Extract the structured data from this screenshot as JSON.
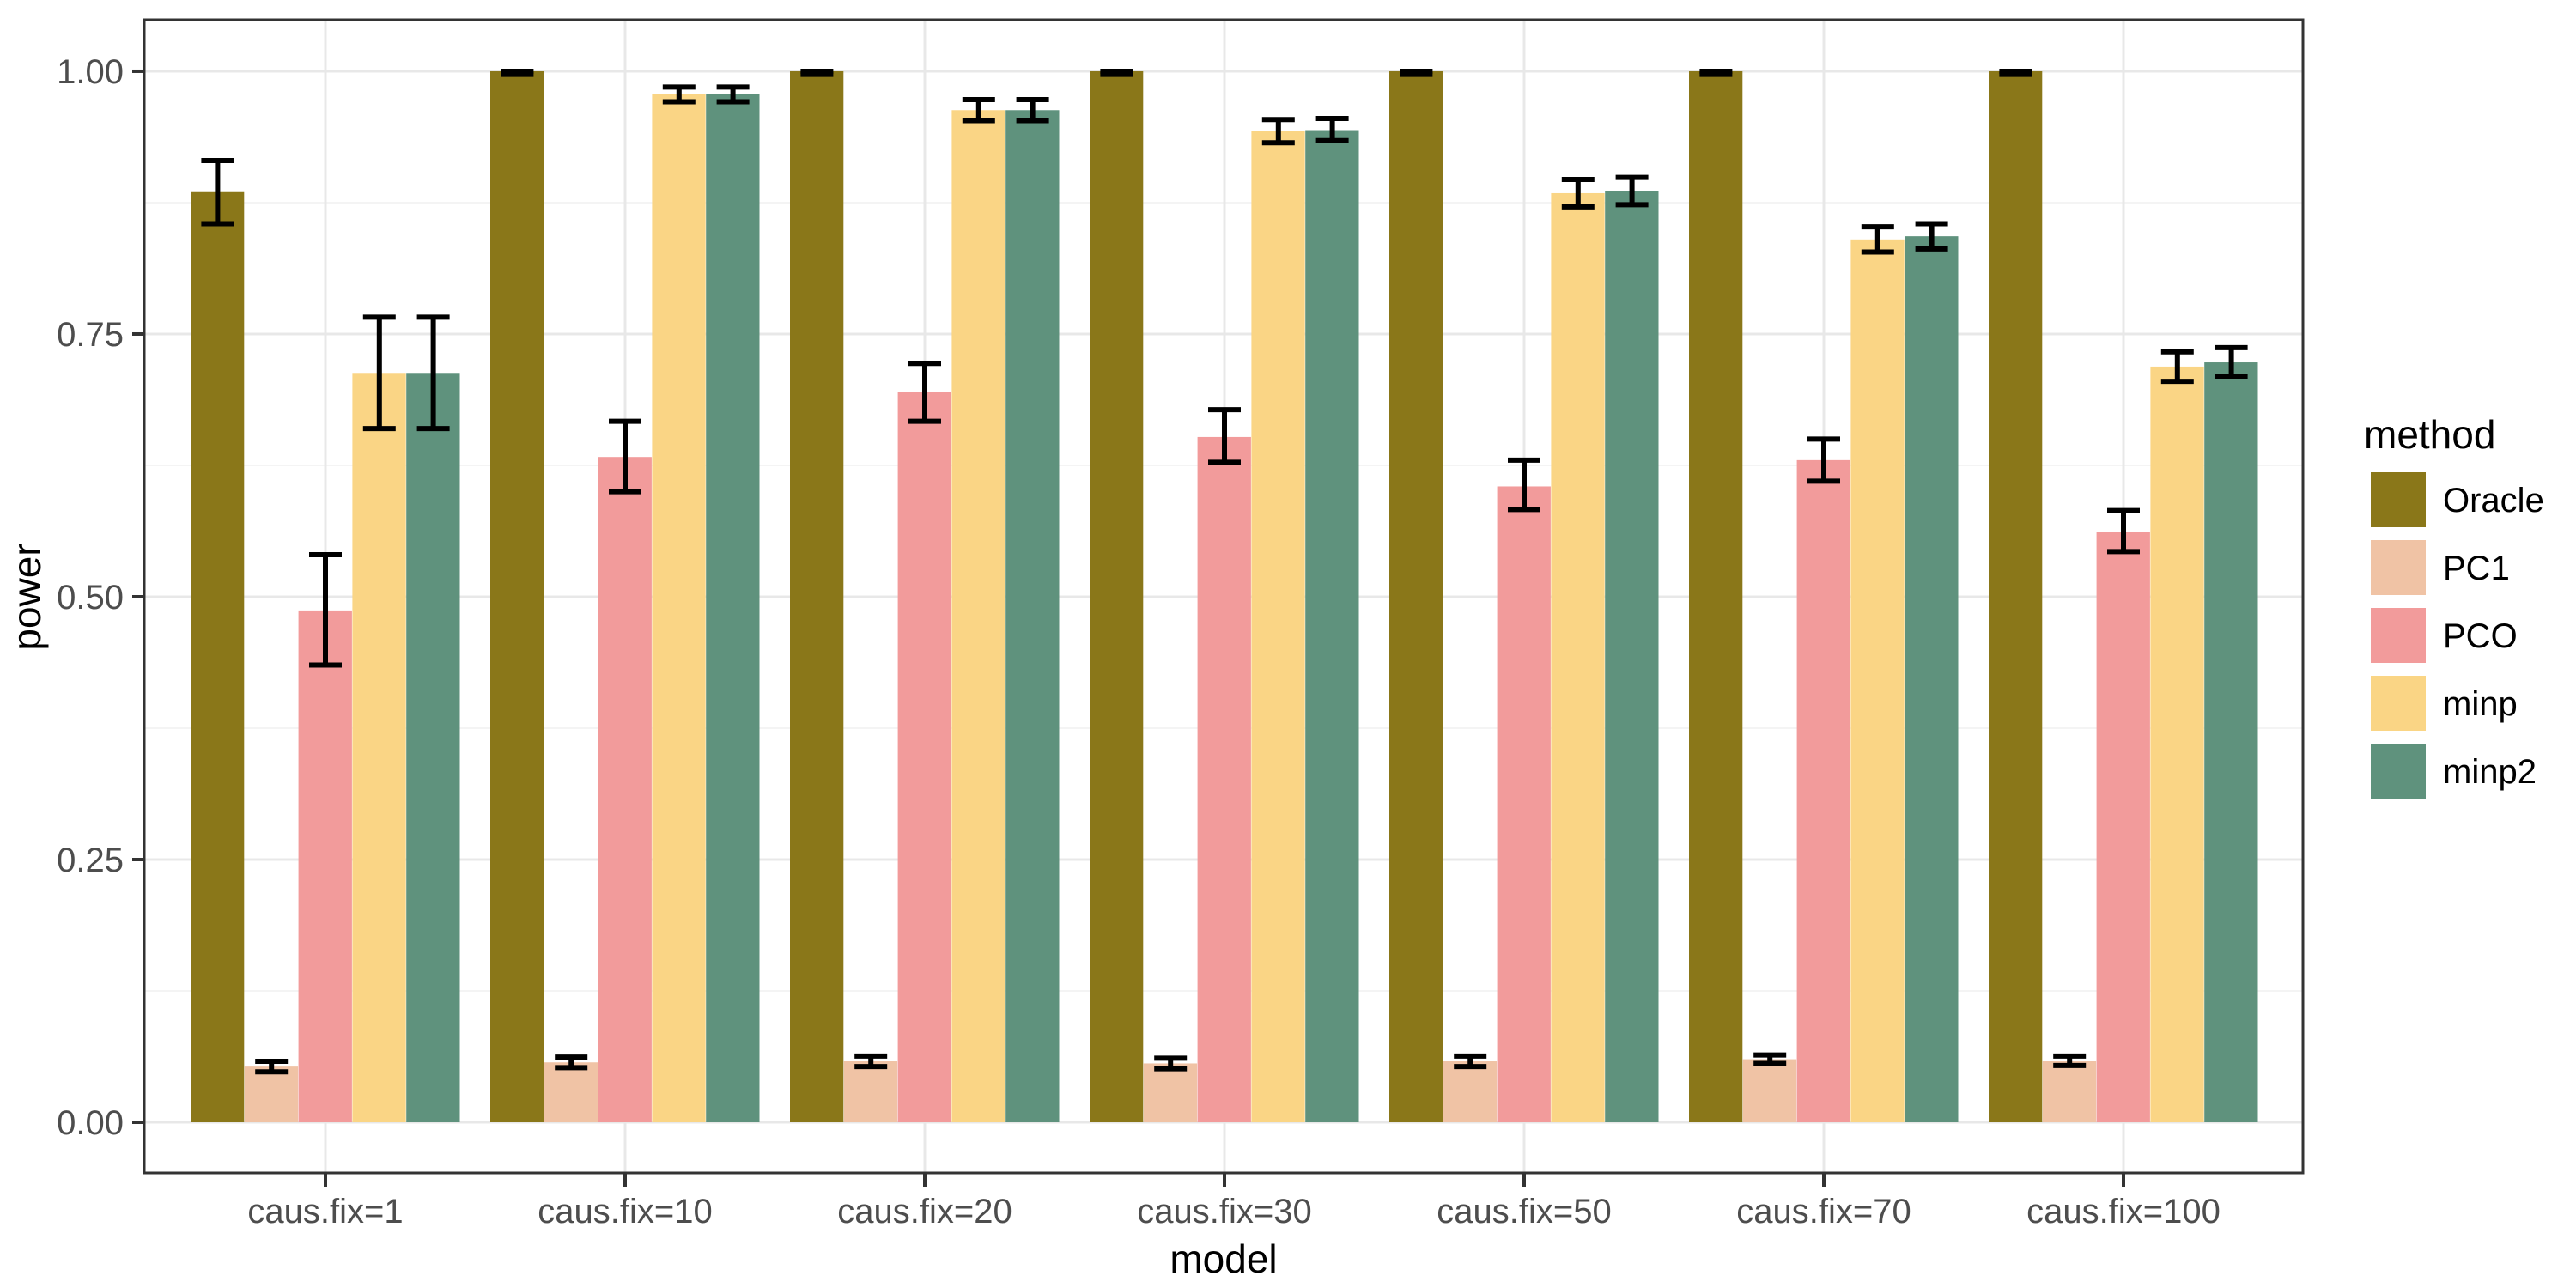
{
  "figure": {
    "background": "#FFFFFF",
    "panel_border_color": "#333333",
    "grid_major_color": "#E8E8E8",
    "grid_minor_color": "#F4F4F4",
    "axis_text_color": "#4D4D4D",
    "axis_title_color": "#000000",
    "errorbar_color": "#000000"
  },
  "chart_data": {
    "type": "bar",
    "title": "",
    "xlabel": "model",
    "ylabel": "power",
    "legend_title": "method",
    "legend_position": "right",
    "grid": true,
    "ylim": [
      -0.0482,
      1.049
    ],
    "y_ticks": [
      {
        "value": 0.0,
        "label": "0.00"
      },
      {
        "value": 0.25,
        "label": "0.25"
      },
      {
        "value": 0.5,
        "label": "0.50"
      },
      {
        "value": 0.75,
        "label": "0.75"
      },
      {
        "value": 1.0,
        "label": "1.00"
      }
    ],
    "y_minor_ticks": [
      0.125,
      0.375,
      0.625,
      0.875
    ],
    "categories": [
      "caus.fix=1",
      "caus.fix=10",
      "caus.fix=20",
      "caus.fix=30",
      "caus.fix=50",
      "caus.fix=70",
      "caus.fix=100"
    ],
    "series": [
      {
        "name": "Oracle",
        "color": "#8A7719",
        "values": [
          0.885,
          1.0,
          1.0,
          1.0,
          1.0,
          1.0,
          1.0
        ],
        "error_low": [
          0.855,
          0.997,
          0.997,
          0.997,
          0.997,
          0.997,
          0.997
        ],
        "error_high": [
          0.915,
          1.0,
          1.0,
          1.0,
          1.0,
          1.0,
          1.0
        ]
      },
      {
        "name": "PC1",
        "color": "#F0C3A5",
        "values": [
          0.053,
          0.057,
          0.058,
          0.056,
          0.058,
          0.06,
          0.058
        ],
        "error_low": [
          0.048,
          0.052,
          0.053,
          0.051,
          0.053,
          0.056,
          0.054
        ],
        "error_high": [
          0.058,
          0.062,
          0.063,
          0.061,
          0.063,
          0.064,
          0.063
        ]
      },
      {
        "name": "PCO",
        "color": "#F29B9B",
        "values": [
          0.487,
          0.633,
          0.695,
          0.652,
          0.605,
          0.63,
          0.562
        ],
        "error_low": [
          0.435,
          0.6,
          0.667,
          0.628,
          0.583,
          0.61,
          0.543
        ],
        "error_high": [
          0.54,
          0.667,
          0.722,
          0.678,
          0.63,
          0.65,
          0.582
        ]
      },
      {
        "name": "minp",
        "color": "#FAD585",
        "values": [
          0.713,
          0.978,
          0.963,
          0.943,
          0.884,
          0.84,
          0.719
        ],
        "error_low": [
          0.66,
          0.971,
          0.953,
          0.932,
          0.871,
          0.828,
          0.705
        ],
        "error_high": [
          0.766,
          0.985,
          0.973,
          0.954,
          0.897,
          0.852,
          0.733
        ]
      },
      {
        "name": "minp2",
        "color": "#5F927D",
        "values": [
          0.713,
          0.978,
          0.963,
          0.944,
          0.886,
          0.843,
          0.723
        ],
        "error_low": [
          0.66,
          0.971,
          0.953,
          0.934,
          0.873,
          0.831,
          0.71
        ],
        "error_high": [
          0.766,
          0.985,
          0.973,
          0.955,
          0.899,
          0.855,
          0.737
        ]
      }
    ]
  }
}
